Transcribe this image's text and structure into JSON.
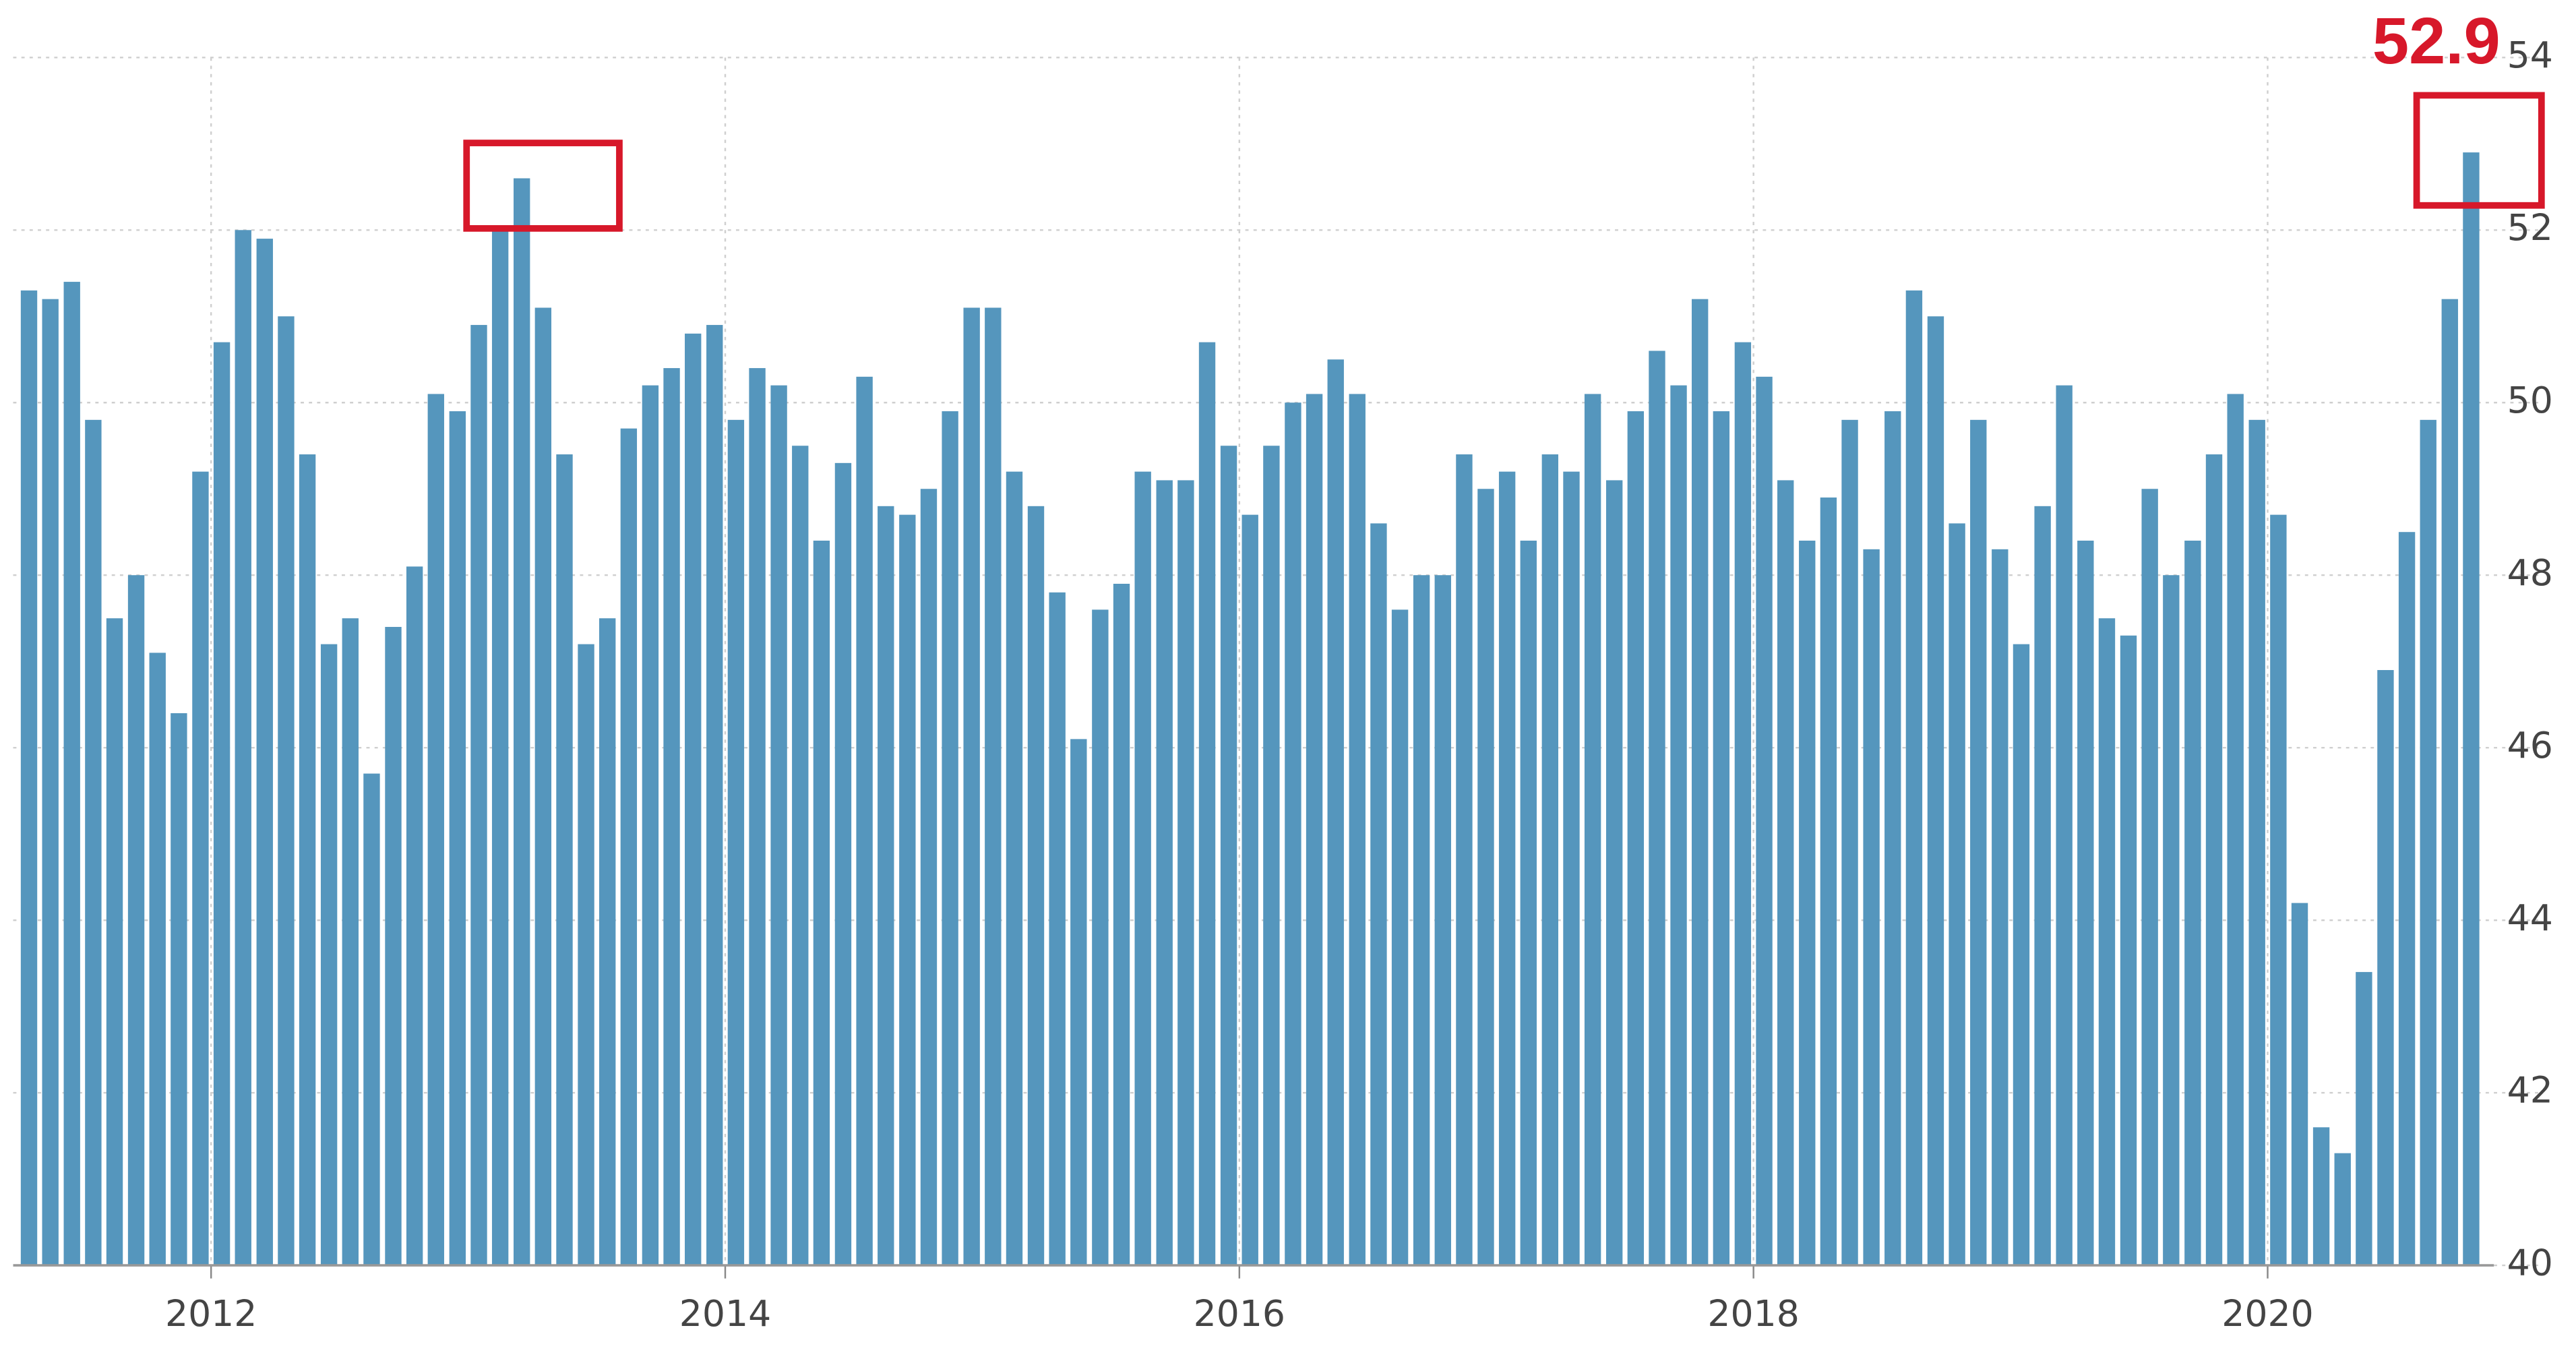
{
  "chart_data": {
    "type": "bar",
    "annotation": "52.9",
    "color": "#5596bd",
    "grid": true,
    "x": [
      2011.25,
      2011.333,
      2011.417,
      2011.5,
      2011.583,
      2011.667,
      2011.75,
      2011.833,
      2011.917,
      2012.0,
      2012.083,
      2012.167,
      2012.25,
      2012.333,
      2012.417,
      2012.5,
      2012.583,
      2012.667,
      2012.75,
      2012.833,
      2012.917,
      2013.0,
      2013.083,
      2013.167,
      2013.25,
      2013.333,
      2013.417,
      2013.5,
      2013.583,
      2013.667,
      2013.75,
      2013.833,
      2013.917,
      2014.0,
      2014.083,
      2014.167,
      2014.25,
      2014.333,
      2014.417,
      2014.5,
      2014.583,
      2014.667,
      2014.75,
      2014.833,
      2014.917,
      2015.0,
      2015.083,
      2015.167,
      2015.25,
      2015.333,
      2015.417,
      2015.5,
      2015.583,
      2015.667,
      2015.75,
      2015.833,
      2015.917,
      2016.0,
      2016.083,
      2016.167,
      2016.25,
      2016.333,
      2016.417,
      2016.5,
      2016.583,
      2016.667,
      2016.75,
      2016.833,
      2016.917,
      2017.0,
      2017.083,
      2017.167,
      2017.25,
      2017.333,
      2017.417,
      2017.5,
      2017.583,
      2017.667,
      2017.75,
      2017.833,
      2017.917,
      2018.0,
      2018.083,
      2018.167,
      2018.25,
      2018.333,
      2018.417,
      2018.5,
      2018.583,
      2018.667,
      2018.75,
      2018.833,
      2018.917,
      2019.0,
      2019.083,
      2019.167,
      2019.25,
      2019.333,
      2019.417,
      2019.5,
      2019.583,
      2019.667,
      2019.75,
      2019.833,
      2019.917,
      2020.0,
      2020.083,
      2020.167,
      2020.25,
      2020.333,
      2020.417,
      2020.5,
      2020.583,
      2020.667,
      2020.75
    ],
    "values": [
      51.3,
      51.2,
      51.4,
      49.8,
      47.5,
      48,
      47.1,
      46.4,
      49.2,
      50.7,
      52,
      51.9,
      51,
      49.4,
      47.2,
      47.5,
      45.7,
      47.4,
      48.1,
      50.1,
      49.9,
      50.9,
      52,
      52.6,
      51.1,
      49.4,
      47.2,
      47.5,
      49.7,
      50.2,
      50.4,
      50.8,
      50.9,
      49.8,
      50.4,
      50.2,
      49.5,
      48.4,
      49.3,
      50.3,
      48.8,
      48.7,
      49,
      49.9,
      51.1,
      51.1,
      49.2,
      48.8,
      47.8,
      46.1,
      47.6,
      47.9,
      49.2,
      49.1,
      49.1,
      50.7,
      49.5,
      48.7,
      49.5,
      50,
      50.1,
      50.5,
      50.1,
      48.6,
      47.6,
      48,
      48,
      49.4,
      49,
      49.2,
      48.4,
      49.4,
      49.2,
      50.1,
      49.1,
      49.9,
      50.6,
      50.2,
      51.2,
      49.9,
      50.7,
      50.3,
      49.1,
      48.4,
      48.9,
      49.8,
      48.3,
      49.9,
      51.3,
      51,
      48.6,
      49.8,
      48.3,
      47.2,
      48.8,
      50.2,
      48.4,
      47.5,
      47.3,
      49,
      48,
      48.4,
      49.4,
      50.1,
      49.8,
      48.7,
      44.2,
      41.6,
      41.3,
      43.4,
      46.9,
      48.5,
      49.8,
      51.2,
      52.9
    ],
    "xlim": [
      2011.23,
      2020.88
    ],
    "xticks": [
      2012,
      2014,
      2016,
      2018,
      2020
    ],
    "ylim": [
      40,
      54
    ],
    "yticks": [
      40,
      42,
      44,
      46,
      48,
      50,
      52,
      54
    ]
  }
}
